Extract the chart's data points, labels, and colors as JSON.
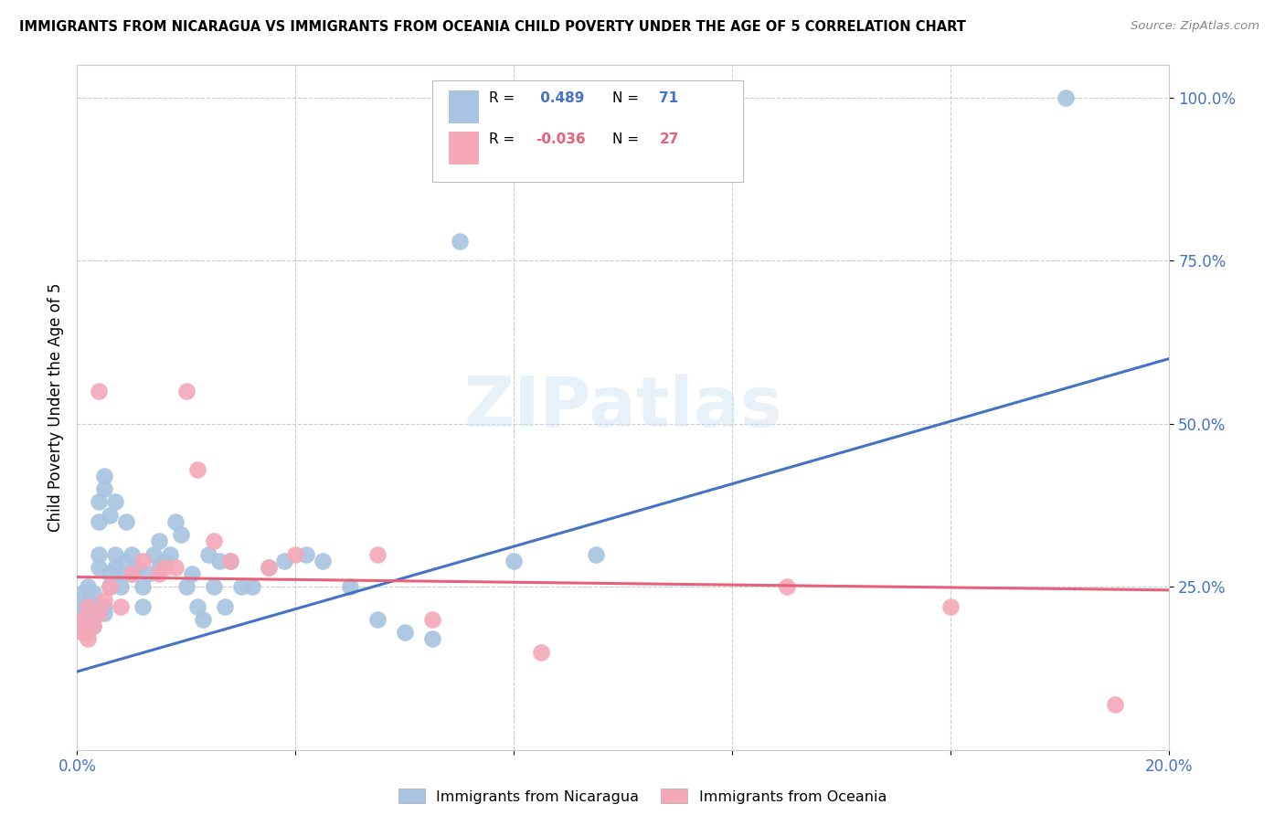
{
  "title": "IMMIGRANTS FROM NICARAGUA VS IMMIGRANTS FROM OCEANIA CHILD POVERTY UNDER THE AGE OF 5 CORRELATION CHART",
  "source": "Source: ZipAtlas.com",
  "ylabel": "Child Poverty Under the Age of 5",
  "xlim": [
    0.0,
    0.2
  ],
  "ylim": [
    0.0,
    1.05
  ],
  "ytick_vals": [
    0.25,
    0.5,
    0.75,
    1.0
  ],
  "ytick_labels": [
    "25.0%",
    "50.0%",
    "75.0%",
    "100.0%"
  ],
  "xtick_vals": [
    0.0,
    0.2
  ],
  "xtick_labels": [
    "0.0%",
    "20.0%"
  ],
  "r_nicaragua": 0.489,
  "n_nicaragua": 71,
  "r_oceania": -0.036,
  "n_oceania": 27,
  "color_nicaragua": "#a8c4e0",
  "color_oceania": "#f4a8b8",
  "line_color_nicaragua": "#4472c4",
  "line_color_oceania": "#e8607a",
  "nic_line_x": [
    0.0,
    0.2
  ],
  "nic_line_y": [
    0.12,
    0.6
  ],
  "oce_line_x": [
    0.0,
    0.2
  ],
  "oce_line_y": [
    0.265,
    0.245
  ],
  "nicaragua_x": [
    0.001,
    0.001,
    0.001,
    0.001,
    0.001,
    0.002,
    0.002,
    0.002,
    0.002,
    0.002,
    0.002,
    0.003,
    0.003,
    0.003,
    0.003,
    0.003,
    0.004,
    0.004,
    0.004,
    0.004,
    0.004,
    0.005,
    0.005,
    0.005,
    0.005,
    0.006,
    0.006,
    0.006,
    0.007,
    0.007,
    0.007,
    0.008,
    0.008,
    0.009,
    0.009,
    0.01,
    0.01,
    0.011,
    0.012,
    0.012,
    0.013,
    0.014,
    0.015,
    0.015,
    0.016,
    0.017,
    0.018,
    0.019,
    0.02,
    0.021,
    0.022,
    0.023,
    0.024,
    0.025,
    0.026,
    0.027,
    0.028,
    0.03,
    0.032,
    0.035,
    0.038,
    0.042,
    0.045,
    0.05,
    0.055,
    0.06,
    0.065,
    0.07,
    0.08,
    0.095,
    0.181
  ],
  "nicaragua_y": [
    0.2,
    0.22,
    0.19,
    0.21,
    0.24,
    0.23,
    0.21,
    0.2,
    0.18,
    0.22,
    0.25,
    0.22,
    0.2,
    0.19,
    0.24,
    0.21,
    0.3,
    0.28,
    0.35,
    0.38,
    0.22,
    0.4,
    0.42,
    0.22,
    0.21,
    0.25,
    0.27,
    0.36,
    0.28,
    0.3,
    0.38,
    0.25,
    0.27,
    0.35,
    0.29,
    0.3,
    0.27,
    0.28,
    0.22,
    0.25,
    0.27,
    0.3,
    0.28,
    0.32,
    0.29,
    0.3,
    0.35,
    0.33,
    0.25,
    0.27,
    0.22,
    0.2,
    0.3,
    0.25,
    0.29,
    0.22,
    0.29,
    0.25,
    0.25,
    0.28,
    0.29,
    0.3,
    0.29,
    0.25,
    0.2,
    0.18,
    0.17,
    0.78,
    0.29,
    0.3,
    1.0
  ],
  "oceania_x": [
    0.001,
    0.001,
    0.002,
    0.002,
    0.003,
    0.004,
    0.004,
    0.005,
    0.006,
    0.008,
    0.01,
    0.012,
    0.015,
    0.016,
    0.018,
    0.02,
    0.022,
    0.025,
    0.028,
    0.035,
    0.04,
    0.055,
    0.065,
    0.085,
    0.13,
    0.16,
    0.19
  ],
  "oceania_y": [
    0.2,
    0.18,
    0.22,
    0.17,
    0.19,
    0.21,
    0.55,
    0.23,
    0.25,
    0.22,
    0.27,
    0.29,
    0.27,
    0.28,
    0.28,
    0.55,
    0.43,
    0.32,
    0.29,
    0.28,
    0.3,
    0.3,
    0.2,
    0.15,
    0.25,
    0.22,
    0.07
  ]
}
